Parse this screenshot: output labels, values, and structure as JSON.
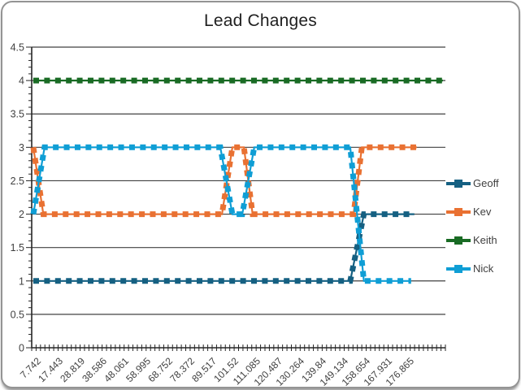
{
  "chart_data": {
    "type": "line",
    "title": "Lead Changes",
    "x_labels": [
      "7.742",
      "17.443",
      "28.819",
      "38.586",
      "48.061",
      "58.995",
      "68.752",
      "78.372",
      "89.517",
      "101.52",
      "111.085",
      "120.487",
      "130.264",
      "139.84",
      "149.134",
      "158.654",
      "167.931",
      "176.865"
    ],
    "y_tick_labels": [
      "0",
      "0.5",
      "1",
      "1.5",
      "2",
      "2.5",
      "3",
      "3.5",
      "4",
      "4.5"
    ],
    "ylim": [
      0,
      4.5
    ],
    "ytick_step": 0.5,
    "grid": true,
    "legend_position": "right",
    "line_style": "solid-with-square-dash-markers",
    "colors": {
      "axis": "#262626",
      "grid": "#404040",
      "tick_label": "#404040",
      "title": "#1f1f1f"
    },
    "series": [
      {
        "name": "Geoff",
        "color": "#156082",
        "points": [
          [
            0.004,
            1
          ],
          [
            0.77,
            1
          ],
          [
            0.803,
            2
          ],
          [
            0.925,
            2
          ]
        ]
      },
      {
        "name": "Kev",
        "color": "#E97132",
        "points": [
          [
            0.004,
            3
          ],
          [
            0.028,
            2
          ],
          [
            0.46,
            2
          ],
          [
            0.485,
            3
          ],
          [
            0.513,
            3
          ],
          [
            0.534,
            2
          ],
          [
            0.778,
            2
          ],
          [
            0.798,
            3
          ],
          [
            0.931,
            3
          ]
        ]
      },
      {
        "name": "Keith",
        "color": "#196B24",
        "points": [
          [
            0.004,
            4
          ],
          [
            0.994,
            4
          ]
        ]
      },
      {
        "name": "Nick",
        "color": "#0F9ED5",
        "points": [
          [
            0.004,
            2
          ],
          [
            0.031,
            3
          ],
          [
            0.456,
            3
          ],
          [
            0.485,
            2
          ],
          [
            0.509,
            2
          ],
          [
            0.538,
            3
          ],
          [
            0.77,
            3
          ],
          [
            0.803,
            1
          ],
          [
            0.917,
            1
          ]
        ]
      }
    ]
  }
}
